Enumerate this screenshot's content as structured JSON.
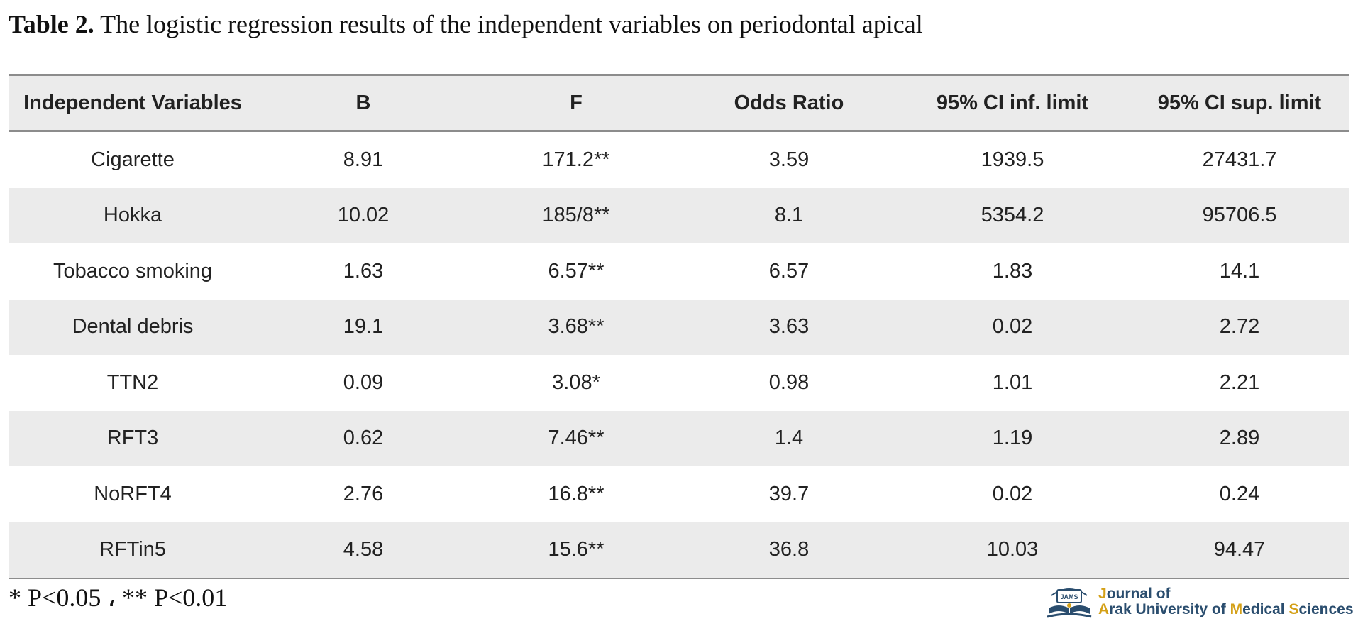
{
  "caption": {
    "label": "Table 2.",
    "text": "The logistic regression results of the independent variables on periodontal apical"
  },
  "table": {
    "headers": [
      "Independent Variables",
      "B",
      "F",
      "Odds Ratio",
      "95% CI inf. limit",
      "95% CI sup. limit"
    ],
    "rows": [
      [
        "Cigarette",
        "8.91",
        "171.2**",
        "3.59",
        "1939.5",
        "27431.7"
      ],
      [
        "Hokka",
        "10.02",
        "185/8**",
        "8.1",
        "5354.2",
        "95706.5"
      ],
      [
        "Tobacco smoking",
        "1.63",
        "6.57**",
        "6.57",
        "1.83",
        "14.1"
      ],
      [
        "Dental debris",
        "19.1",
        "3.68**",
        "3.63",
        "0.02",
        "2.72"
      ],
      [
        "TTN2",
        "0.09",
        "3.08*",
        "0.98",
        "1.01",
        "2.21"
      ],
      [
        "RFT3",
        "0.62",
        "7.46**",
        "1.4",
        "1.19",
        "2.89"
      ],
      [
        "NoRFT4",
        "2.76",
        "16.8**",
        "39.7",
        "0.02",
        "0.24"
      ],
      [
        "RFTin5",
        "4.58",
        "15.6**",
        "36.8",
        "10.03",
        "94.47"
      ]
    ]
  },
  "footnote": "* P<0.05 ، ** P<0.01",
  "logo": {
    "emblem_text": "JAMS",
    "line1_j": "J",
    "line1_rest": "ournal of",
    "line2_a": "A",
    "line2_rak": "rak University of ",
    "line2_m": "M",
    "line2_edical": "edical ",
    "line2_s": "S",
    "line2_ciences": "ciences",
    "colors": {
      "primary": "#2a4d6e",
      "accent": "#d4a017"
    }
  }
}
